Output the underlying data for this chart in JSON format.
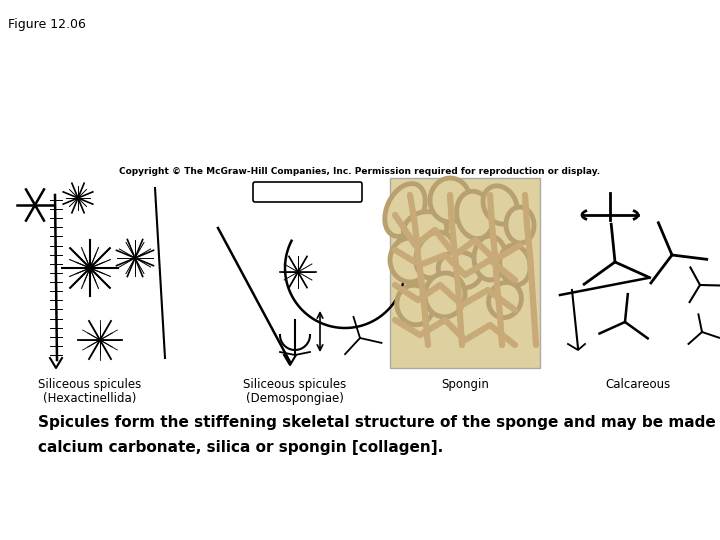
{
  "figure_label": "Figure 12.06",
  "copyright_text": "Copyright © The McGraw-Hill Companies, Inc. Permission required for reproduction or display.",
  "caption_line1": "Spicules form the stiffening skeletal structure of the sponge and may be made of",
  "caption_line2": "calcium carbonate, silica or spongin [collagen].",
  "label1": "Siliceous spicules\n(Hexactinellida)",
  "label2": "Siliceous spicules\n(Demospongiae)",
  "label3": "Spongin",
  "label4": "Calcareous",
  "bg_color": "#ffffff",
  "text_color": "#000000",
  "figure_label_fontsize": 9,
  "copyright_fontsize": 6.5,
  "caption_fontsize": 11,
  "sublabel_fontsize": 8.5,
  "figsize": [
    7.2,
    5.4
  ],
  "dpi": 100
}
